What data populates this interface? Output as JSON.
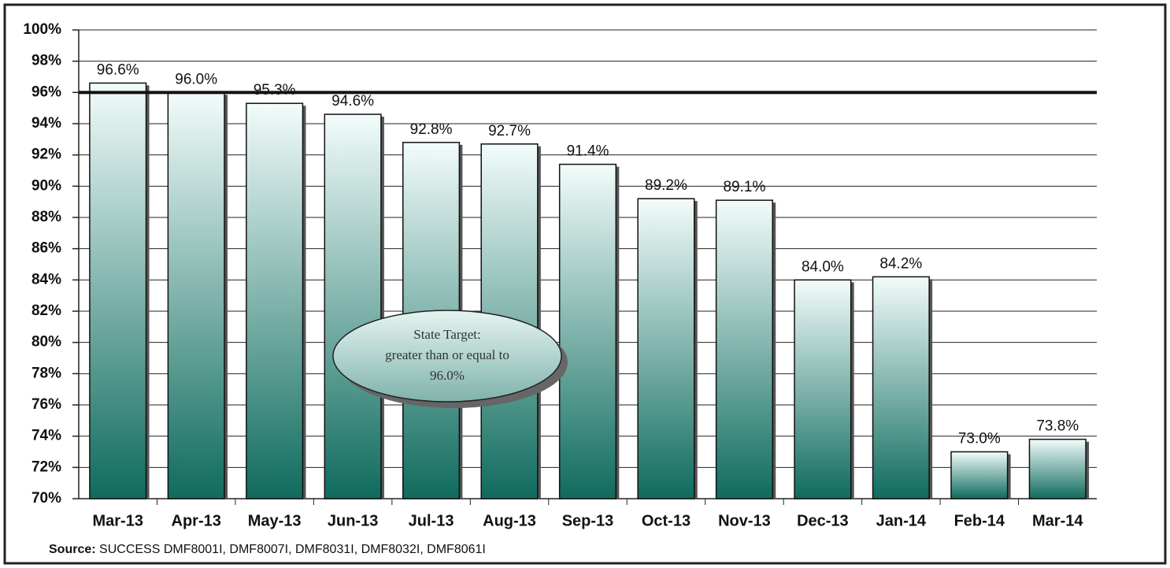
{
  "chart_data": {
    "type": "bar",
    "categories": [
      "Mar-13",
      "Apr-13",
      "May-13",
      "Jun-13",
      "Jul-13",
      "Aug-13",
      "Sep-13",
      "Oct-13",
      "Nov-13",
      "Dec-13",
      "Jan-14",
      "Feb-14",
      "Mar-14"
    ],
    "values": [
      96.6,
      96.0,
      95.3,
      94.6,
      92.8,
      92.7,
      91.4,
      89.2,
      89.1,
      84.0,
      84.2,
      73.0,
      73.8
    ],
    "value_labels": [
      "96.6%",
      "96.0%",
      "95.3%",
      "94.6%",
      "92.8%",
      "92.7%",
      "91.4%",
      "89.2%",
      "89.1%",
      "84.0%",
      "84.2%",
      "73.0%",
      "73.8%"
    ],
    "gradient": [
      "#f2fcfb",
      "#0f6b5d"
    ],
    "ylim": [
      70,
      100
    ],
    "yticks": [
      {
        "value": 70,
        "label": "70%"
      },
      {
        "value": 72,
        "label": "72%"
      },
      {
        "value": 74,
        "label": "74%"
      },
      {
        "value": 76,
        "label": "76%"
      },
      {
        "value": 78,
        "label": "78%"
      },
      {
        "value": 80,
        "label": "80%"
      },
      {
        "value": 82,
        "label": "82%"
      },
      {
        "value": 84,
        "label": "84%"
      },
      {
        "value": 86,
        "label": "86%"
      },
      {
        "value": 88,
        "label": "88%"
      },
      {
        "value": 90,
        "label": "90%"
      },
      {
        "value": 92,
        "label": "92%"
      },
      {
        "value": 94,
        "label": "94%"
      },
      {
        "value": 96,
        "label": "96%"
      },
      {
        "value": 98,
        "label": "98%"
      },
      {
        "value": 100,
        "label": "100%"
      }
    ],
    "grid": true,
    "target": 96,
    "annotation": [
      "State Target:",
      "greater than or equal to",
      "96.0%"
    ],
    "source_label": "Source:",
    "source_text": "SUCCESS DMF8001I, DMF8007I, DMF8031I, DMF8032I, DMF8061I"
  }
}
